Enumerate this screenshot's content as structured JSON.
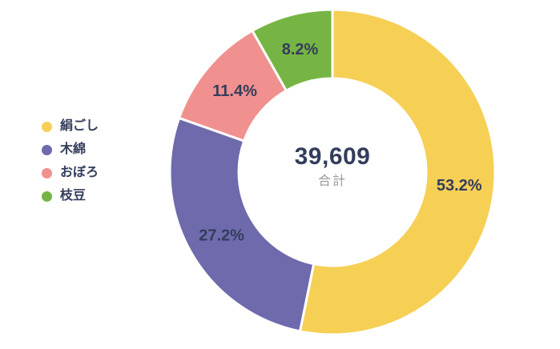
{
  "chart_data": {
    "type": "pie",
    "subtype": "donut",
    "title": "",
    "categories": [
      "絹ごし",
      "木綿",
      "おぼろ",
      "枝豆"
    ],
    "values": [
      53.2,
      27.2,
      11.4,
      8.2
    ],
    "value_labels": [
      "53.2%",
      "27.2%",
      "11.4%",
      "8.2%"
    ],
    "colors": [
      "#F6CF55",
      "#6E6AAC",
      "#F0908F",
      "#76B543"
    ],
    "center_value": "39,609",
    "center_label": "合計",
    "legend_position": "left",
    "start_angle_deg": 0,
    "direction": "clockwise",
    "label_color": "#333D5C",
    "center_label_color": "#9B9B9B",
    "background": "#FFFFFF"
  },
  "legend": {
    "items": [
      {
        "label": "絹ごし",
        "color": "#F6CF55"
      },
      {
        "label": "木綿",
        "color": "#6E6AAC"
      },
      {
        "label": "おぼろ",
        "color": "#F0908F"
      },
      {
        "label": "枝豆",
        "color": "#76B543"
      }
    ]
  }
}
